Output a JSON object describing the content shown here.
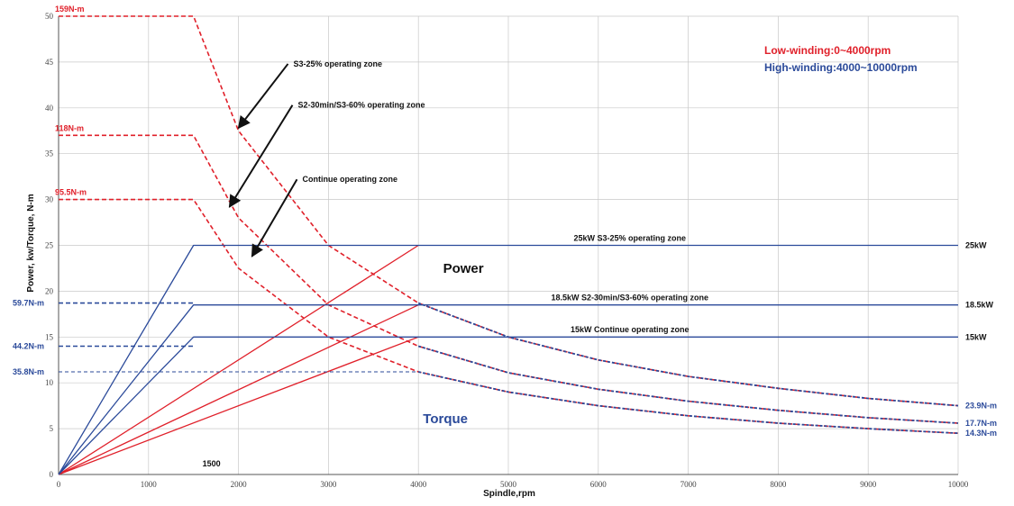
{
  "chart_data": {
    "type": "line",
    "xlabel": "Spindle,rpm",
    "ylabel": "Power, kw/Torque, N-m",
    "xlim": [
      0,
      10000
    ],
    "ylim": [
      0,
      50
    ],
    "x_ticks": [
      0,
      1000,
      2000,
      3000,
      4000,
      5000,
      6000,
      7000,
      8000,
      9000,
      10000
    ],
    "y_ticks": [
      0,
      5,
      10,
      15,
      20,
      25,
      30,
      35,
      40,
      45,
      50
    ],
    "grid": true,
    "colors": {
      "low": "#e0202a",
      "high": "#2b4a9a",
      "grid": "#c8c8c8",
      "text": "#111111"
    },
    "legend": [
      {
        "text": "Low-winding:0~4000rpm",
        "color": "#e0202a"
      },
      {
        "text": "High-winding:4000~10000rpm",
        "color": "#2b4a9a"
      }
    ],
    "series": [
      {
        "name": "S3-25% operating zone",
        "winding": "low",
        "style": "dashed",
        "color": "#e0202a",
        "x": [
          0,
          1500,
          2000,
          3000,
          4000,
          5000,
          6000,
          7000,
          8000,
          9000,
          10000
        ],
        "y": [
          50,
          50,
          37.5,
          25,
          18.7,
          15,
          12.5,
          10.7,
          9.4,
          8.3,
          7.5
        ]
      },
      {
        "name": "S2-30min/S3-60% operating zone",
        "winding": "low",
        "style": "dashed",
        "color": "#e0202a",
        "x": [
          0,
          1500,
          2000,
          3000,
          4000,
          5000,
          6000,
          7000,
          8000,
          9000,
          10000
        ],
        "y": [
          37,
          37,
          28,
          18.5,
          14,
          11.1,
          9.3,
          8,
          7,
          6.2,
          5.6
        ]
      },
      {
        "name": "Continue operating zone",
        "winding": "low",
        "style": "dashed",
        "color": "#e0202a",
        "x": [
          0,
          1500,
          2000,
          3000,
          4000,
          5000,
          6000,
          7000,
          8000,
          9000,
          10000
        ],
        "y": [
          30,
          30,
          22.5,
          15,
          11.2,
          9,
          7.5,
          6.4,
          5.6,
          5,
          4.5
        ]
      },
      {
        "name": "Power low 25kW",
        "winding": "low",
        "style": "solid",
        "color": "#e0202a",
        "x": [
          0,
          4000
        ],
        "y": [
          0,
          25
        ]
      },
      {
        "name": "Power low 18.5kW",
        "winding": "low",
        "style": "solid",
        "color": "#e0202a",
        "x": [
          0,
          4000
        ],
        "y": [
          0,
          18.5
        ]
      },
      {
        "name": "Power low 15kW",
        "winding": "low",
        "style": "solid",
        "color": "#e0202a",
        "x": [
          0,
          4000
        ],
        "y": [
          0,
          15
        ]
      },
      {
        "name": "25kW S3-25% operating zone",
        "winding": "high",
        "style": "solid",
        "color": "#2b4a9a",
        "x": [
          0,
          1500,
          10000
        ],
        "y": [
          0,
          25,
          25
        ]
      },
      {
        "name": "18.5kW S2-30min/S3-60% operating zone",
        "winding": "high",
        "style": "solid",
        "color": "#2b4a9a",
        "x": [
          0,
          1500,
          10000
        ],
        "y": [
          0,
          18.5,
          18.5
        ]
      },
      {
        "name": "15kW Continue operating zone",
        "winding": "high",
        "style": "solid",
        "color": "#2b4a9a",
        "x": [
          0,
          1500,
          10000
        ],
        "y": [
          0,
          15,
          15
        ]
      },
      {
        "name": "59.7N-m",
        "winding": "high",
        "style": "dashed",
        "color": "#2b4a9a",
        "x": [
          0,
          1500
        ],
        "y": [
          18.7,
          18.7
        ]
      },
      {
        "name": "44.2N-m",
        "winding": "high",
        "style": "dashed",
        "color": "#2b4a9a",
        "x": [
          0,
          1500
        ],
        "y": [
          14,
          14
        ]
      },
      {
        "name": "35.8N-m",
        "winding": "high",
        "style": "thin-dashed",
        "color": "#2b4a9a",
        "x": [
          0,
          4000
        ],
        "y": [
          11.2,
          11.2
        ]
      },
      {
        "name": "Torque high S3-25%",
        "winding": "high",
        "style": "dotted",
        "color": "#2b4a9a",
        "x": [
          4000,
          5000,
          6000,
          7000,
          8000,
          9000,
          10000
        ],
        "y": [
          18.7,
          15,
          12.5,
          10.7,
          9.4,
          8.3,
          7.5
        ]
      },
      {
        "name": "Torque high S2",
        "winding": "high",
        "style": "dotted",
        "color": "#2b4a9a",
        "x": [
          4000,
          5000,
          6000,
          7000,
          8000,
          9000,
          10000
        ],
        "y": [
          14,
          11.1,
          9.3,
          8,
          7,
          6.2,
          5.6
        ]
      },
      {
        "name": "Torque high continuous",
        "winding": "high",
        "style": "dotted",
        "color": "#2b4a9a",
        "x": [
          4000,
          5000,
          6000,
          7000,
          8000,
          9000,
          10000
        ],
        "y": [
          11.2,
          9,
          7.5,
          6.4,
          5.6,
          5,
          4.5
        ]
      }
    ],
    "annotations": [
      {
        "text": "159N-m",
        "x": 0,
        "y": 50,
        "color": "#e0202a",
        "anchor": "left-top"
      },
      {
        "text": "118N-m",
        "x": 0,
        "y": 37,
        "color": "#e0202a",
        "anchor": "left-top"
      },
      {
        "text": "95.5N-m",
        "x": 0,
        "y": 30,
        "color": "#e0202a",
        "anchor": "left-top"
      },
      {
        "text": "59.7N-m",
        "x": 0,
        "y": 18.7,
        "color": "#2b4a9a",
        "anchor": "outside-left"
      },
      {
        "text": "44.2N-m",
        "x": 0,
        "y": 14,
        "color": "#2b4a9a",
        "anchor": "outside-left"
      },
      {
        "text": "35.8N-m",
        "x": 0,
        "y": 11.2,
        "color": "#2b4a9a",
        "anchor": "outside-left"
      },
      {
        "text": "25kW",
        "x": 10000,
        "y": 25,
        "color": "#111111",
        "anchor": "outside-right"
      },
      {
        "text": "18.5kW",
        "x": 10000,
        "y": 18.5,
        "color": "#111111",
        "anchor": "outside-right"
      },
      {
        "text": "15kW",
        "x": 10000,
        "y": 15,
        "color": "#111111",
        "anchor": "outside-right"
      },
      {
        "text": "23.9N-m",
        "x": 10000,
        "y": 7.5,
        "color": "#2b4a9a",
        "anchor": "outside-right"
      },
      {
        "text": "17.7N-m",
        "x": 10000,
        "y": 5.6,
        "color": "#2b4a9a",
        "anchor": "outside-right"
      },
      {
        "text": "14.3N-m",
        "x": 10000,
        "y": 4.5,
        "color": "#2b4a9a",
        "anchor": "outside-right"
      },
      {
        "text": "25kW S3-25% operating zone",
        "x": 6350,
        "y": 25.8,
        "color": "#111111",
        "anchor": "center"
      },
      {
        "text": "18.5kW S2-30min/S3-60% operating zone",
        "x": 6350,
        "y": 19.3,
        "color": "#111111",
        "anchor": "center"
      },
      {
        "text": "15kW Continue operating zone",
        "x": 6350,
        "y": 15.8,
        "color": "#111111",
        "anchor": "center"
      },
      {
        "text": "Power",
        "x": 4500,
        "y": 22.3,
        "color": "#111111",
        "anchor": "center",
        "size": "large"
      },
      {
        "text": "Torque",
        "x": 4300,
        "y": 5.9,
        "color": "#2b4a9a",
        "anchor": "center",
        "size": "large"
      },
      {
        "text": "1500",
        "x": 1700,
        "y": 1.2,
        "color": "#111111",
        "anchor": "center"
      }
    ],
    "arrows": [
      {
        "text": "S3-25% operating zone",
        "from": [
          2550,
          44.8
        ],
        "to": [
          2000,
          37.8
        ]
      },
      {
        "text": "S2-30min/S3-60% operating zone",
        "from": [
          2600,
          40.3
        ],
        "to": [
          1900,
          29.2
        ]
      },
      {
        "text": "Continue operating zone",
        "from": [
          2650,
          32.2
        ],
        "to": [
          2150,
          23.8
        ]
      }
    ]
  }
}
